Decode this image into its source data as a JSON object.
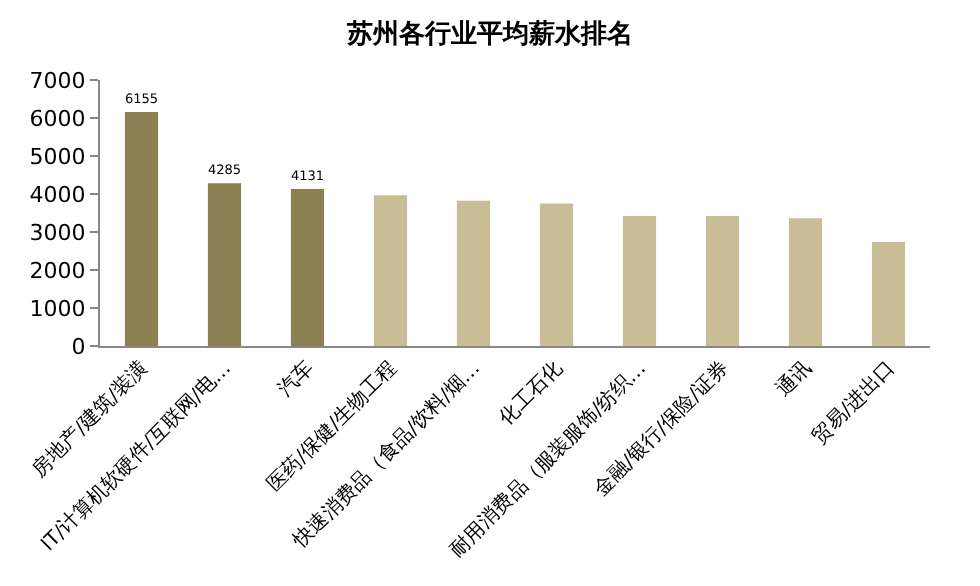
{
  "chart_data": {
    "type": "bar",
    "title": "苏州各行业平均薪水排名",
    "categories": [
      "房地产/建筑/装潢",
      "IT/计算机软硬件/互联网/电…",
      "汽车",
      "医药/保健/生物工程",
      "快速消费品（食品/饮料/烟…",
      "化工石化",
      "耐用消费品（服装服饰/纺织…",
      "金融/银行/保险/证券",
      "通讯",
      "贸易/进出口"
    ],
    "values": [
      6155,
      4285,
      4131,
      3970,
      3820,
      3750,
      3420,
      3420,
      3360,
      2740
    ],
    "colors": [
      "#8b8051",
      "#8b8051",
      "#8b8051",
      "#c8bd96",
      "#c8bd96",
      "#c8bd96",
      "#c8bd96",
      "#c8bd96",
      "#c8bd96",
      "#c8bd96"
    ],
    "value_labels": [
      "6155",
      "4285",
      "4131",
      null,
      null,
      null,
      null,
      null,
      null,
      null
    ],
    "ylim": [
      0,
      7000
    ],
    "yticks": [
      0,
      1000,
      2000,
      3000,
      4000,
      5000,
      6000,
      7000
    ],
    "grid": false
  }
}
